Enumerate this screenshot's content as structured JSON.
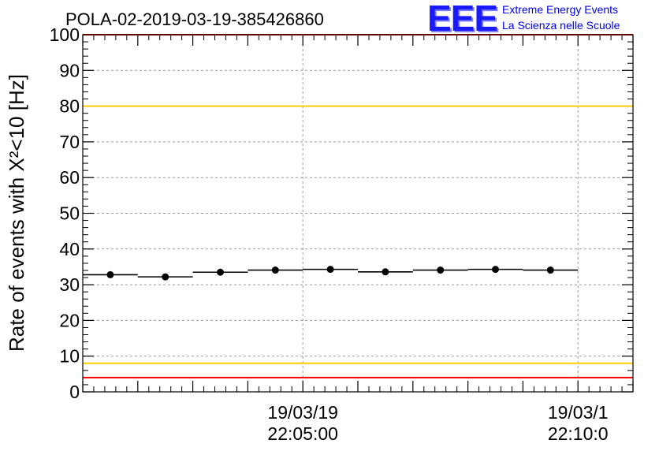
{
  "logo": {
    "mark": "EEE",
    "line1": "Extreme Energy Events",
    "line2": "La Scienza nelle Scuole"
  },
  "colors": {
    "red_line": "#ff0000",
    "yellow_line": "#ffcc00",
    "data": "#000000",
    "grid": "#9a9a9a",
    "logo_blue": "#0000ee"
  },
  "chart_data": {
    "type": "scatter",
    "title": "POLA-02-2019-03-19-385426860",
    "ylabel": "Rate of events with X²<10 [Hz]",
    "xlabel": "",
    "ylim": [
      0,
      100
    ],
    "grid": true,
    "x_range_minutes": [
      0,
      25
    ],
    "y_ticks": [
      "0",
      "10",
      "20",
      "30",
      "40",
      "50",
      "60",
      "70",
      "80",
      "90",
      "100"
    ],
    "x_tick_labels": [
      {
        "minute": 10,
        "date": "19/03/19",
        "time": "22:05:00"
      },
      {
        "minute": 22.5,
        "date": "19/03/1",
        "time": "22:10:0"
      }
    ],
    "reference_lines": [
      {
        "y": 100,
        "color": "red"
      },
      {
        "y": 80,
        "color": "yellow"
      },
      {
        "y": 8,
        "color": "yellow"
      },
      {
        "y": 4,
        "color": "red"
      }
    ],
    "series": [
      {
        "bin_width_minutes": 2.5,
        "x": [
          1.25,
          3.75,
          6.25,
          8.75,
          11.25,
          13.75,
          16.25,
          18.75,
          21.25
        ],
        "values": [
          32.8,
          32.2,
          33.5,
          34.1,
          34.3,
          33.6,
          34.1,
          34.3,
          34.1
        ]
      }
    ]
  }
}
